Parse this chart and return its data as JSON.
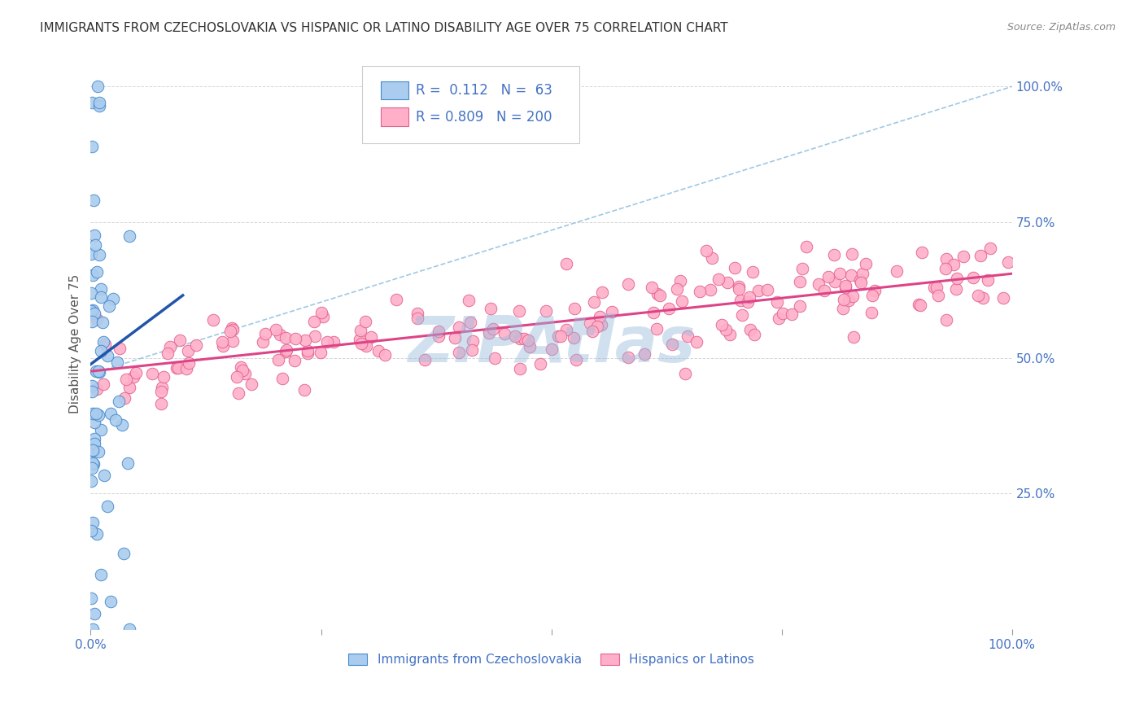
{
  "title": "IMMIGRANTS FROM CZECHOSLOVAKIA VS HISPANIC OR LATINO DISABILITY AGE OVER 75 CORRELATION CHART",
  "source": "Source: ZipAtlas.com",
  "ylabel": "Disability Age Over 75",
  "right_ytick_labels": [
    "100.0%",
    "75.0%",
    "50.0%",
    "25.0%"
  ],
  "right_ytick_positions": [
    1.0,
    0.75,
    0.5,
    0.25
  ],
  "watermark": "ZIPAtlas",
  "legend_blue_r": "0.112",
  "legend_blue_n": "63",
  "legend_pink_r": "0.809",
  "legend_pink_n": "200",
  "legend_label_blue": "Immigrants from Czechoslovakia",
  "legend_label_pink": "Hispanics or Latinos",
  "blue_fill_color": "#aaccee",
  "blue_edge_color": "#4488cc",
  "pink_fill_color": "#ffb0c8",
  "pink_edge_color": "#e06090",
  "blue_line_color": "#2255aa",
  "pink_line_color": "#dd4488",
  "diag_line_color": "#88bbdd",
  "background_color": "#ffffff",
  "grid_color": "#cccccc",
  "title_color": "#333333",
  "axis_color": "#4472c4",
  "watermark_color": "#99bbdd",
  "watermark_alpha": 0.45,
  "watermark_fontsize": 56,
  "xlim": [
    0.0,
    1.0
  ],
  "ylim": [
    0.0,
    1.05
  ],
  "blue_line_x": [
    0.0,
    0.1
  ],
  "blue_line_y": [
    0.488,
    0.615
  ],
  "pink_line_x": [
    0.0,
    1.0
  ],
  "pink_line_y": [
    0.475,
    0.655
  ],
  "diag_line_x": [
    0.0,
    1.0
  ],
  "diag_line_y": [
    0.47,
    1.0
  ],
  "seed_blue": 42,
  "seed_pink": 99,
  "n_blue": 63,
  "n_pink": 200
}
